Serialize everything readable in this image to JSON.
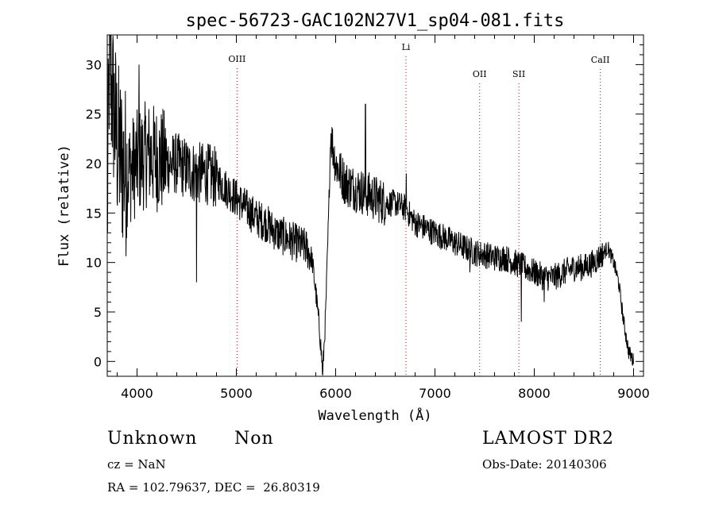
{
  "chart_data": {
    "type": "line",
    "title": "spec-56723-GAC102N27V1_sp04-081.fits",
    "xlabel": "Wavelength (Å)",
    "ylabel": "Flux (relative)",
    "xlim": [
      3700,
      9100
    ],
    "ylim": [
      -1.5,
      33
    ],
    "xticks": [
      4000,
      5000,
      6000,
      7000,
      8000,
      9000
    ],
    "yticks": [
      0,
      5,
      10,
      15,
      20,
      25,
      30
    ],
    "grid": false,
    "series_color": "#000000",
    "line_marker_color": "#cc0000",
    "spectral_lines": [
      {
        "label": "OIII",
        "x": 5007
      },
      {
        "label": "Li",
        "x": 6708
      },
      {
        "label": "OII",
        "x": 7450
      },
      {
        "label": "SII",
        "x": 7845
      },
      {
        "label": "CaII",
        "x": 8665
      }
    ],
    "spectrum_anchors": [
      [
        3700,
        14
      ],
      [
        3720,
        30
      ],
      [
        3760,
        26
      ],
      [
        3800,
        22
      ],
      [
        3850,
        20
      ],
      [
        3900,
        19
      ],
      [
        3950,
        19.5
      ],
      [
        4000,
        20
      ],
      [
        4100,
        21
      ],
      [
        4200,
        20.5
      ],
      [
        4300,
        20
      ],
      [
        4400,
        20
      ],
      [
        4500,
        19.5
      ],
      [
        4600,
        19
      ],
      [
        4700,
        19
      ],
      [
        4800,
        18.5
      ],
      [
        4900,
        17.5
      ],
      [
        5000,
        16.5
      ],
      [
        5100,
        15.5
      ],
      [
        5200,
        14.5
      ],
      [
        5300,
        14
      ],
      [
        5400,
        13
      ],
      [
        5500,
        12.5
      ],
      [
        5600,
        12
      ],
      [
        5700,
        11.5
      ],
      [
        5760,
        10.5
      ],
      [
        5800,
        7
      ],
      [
        5840,
        3
      ],
      [
        5870,
        -1.2
      ],
      [
        5900,
        5
      ],
      [
        5930,
        15
      ],
      [
        5950,
        23
      ],
      [
        6000,
        20
      ],
      [
        6100,
        18
      ],
      [
        6200,
        17.5
      ],
      [
        6300,
        17
      ],
      [
        6400,
        16.5
      ],
      [
        6500,
        16
      ],
      [
        6600,
        16
      ],
      [
        6700,
        15.5
      ],
      [
        6800,
        14
      ],
      [
        6900,
        13.5
      ],
      [
        7000,
        13
      ],
      [
        7100,
        12.5
      ],
      [
        7200,
        12
      ],
      [
        7300,
        11.5
      ],
      [
        7400,
        11
      ],
      [
        7500,
        10.8
      ],
      [
        7600,
        10.5
      ],
      [
        7700,
        10.5
      ],
      [
        7800,
        10
      ],
      [
        7900,
        9.5
      ],
      [
        8000,
        9
      ],
      [
        8100,
        8.5
      ],
      [
        8200,
        8.5
      ],
      [
        8300,
        9
      ],
      [
        8400,
        9.5
      ],
      [
        8500,
        9.5
      ],
      [
        8600,
        10
      ],
      [
        8700,
        11
      ],
      [
        8740,
        11.5
      ],
      [
        8800,
        10
      ],
      [
        8850,
        8
      ],
      [
        8900,
        4
      ],
      [
        8950,
        1
      ],
      [
        9000,
        0
      ]
    ],
    "absorption_features": [
      [
        4600,
        8
      ],
      [
        5870,
        -1.5
      ],
      [
        7350,
        9
      ],
      [
        7870,
        4
      ],
      [
        8100,
        6
      ]
    ],
    "emission_features": [
      [
        4020,
        30
      ],
      [
        6300,
        26
      ],
      [
        6710,
        19
      ]
    ]
  },
  "info": {
    "class": "Unknown",
    "subclass": "Non",
    "survey": "LAMOST DR2",
    "cz": "cz = NaN",
    "obs_date": "Obs-Date: 20140306",
    "coords": "RA = 102.79637, DEC =  26.80319"
  }
}
